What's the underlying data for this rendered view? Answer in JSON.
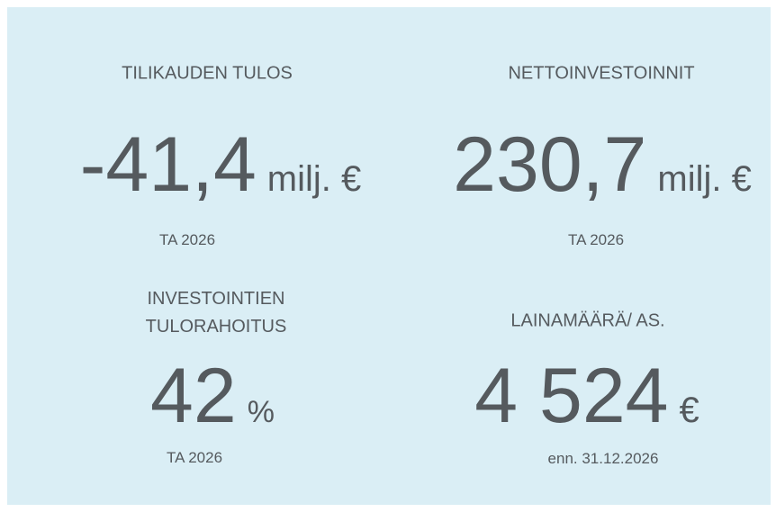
{
  "kpis": [
    {
      "label": "TILIKAUDEN TULOS",
      "value": "-41,4",
      "unit": "milj. €",
      "note": "TA 2026"
    },
    {
      "label": "NETTOINVESTOINNIT",
      "value": "230,7",
      "unit": "milj. €",
      "note": "TA 2026"
    },
    {
      "label": "INVESTOINTIEN TULORAHOITUS",
      "value": "42",
      "unit": "%",
      "note": "TA 2026"
    },
    {
      "label": "LAINAMÄÄRÄ/ AS.",
      "value": "4 524",
      "unit": "€",
      "note": "enn. 31.12.2026"
    }
  ]
}
